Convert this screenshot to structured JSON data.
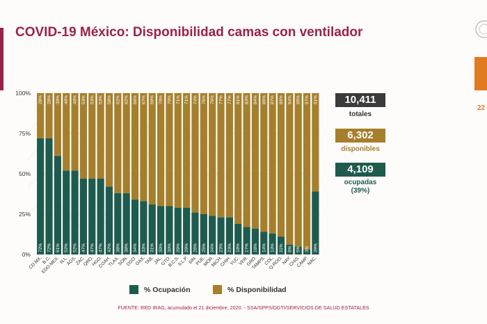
{
  "header": {
    "title": "COVID-19 México: Disponibilidad camas con ventilador"
  },
  "right_edge": {
    "number": "22"
  },
  "summary": {
    "total_value": "10,411",
    "total_label": "totales",
    "available_value": "6,302",
    "available_label": "disponibles",
    "occupied_value": "4,109",
    "occupied_label": "ocupadas",
    "occupied_pct": "(39%)"
  },
  "legend": {
    "occupancy": "% Ocupación",
    "availability": "% Disponibilidad"
  },
  "footer": {
    "source": "FUENTE: RED IRAG, acumulado el 21 diciembre, 2020. - SSA/SPPS/DGTI/SERVICIOS DE SALUD ESTATALES"
  },
  "colors": {
    "occupancy": "#1e5b4f",
    "availability": "#a57f2c",
    "title": "#9b2247",
    "total_box": "#3b3b3b"
  },
  "chart_data": {
    "type": "bar",
    "stacked": true,
    "yticks": [
      "0%",
      "25%",
      "50%",
      "75%",
      "100%"
    ],
    "ylim": [
      0,
      100
    ],
    "categories": [
      "CD.MX.",
      "B.C.",
      "EDO.MEX.",
      "N.L.",
      "AGS.",
      "ZAC.",
      "QRO.",
      "HGO.",
      "COAH.",
      "TLAX.",
      "SON.",
      "DGO.",
      "OAX.",
      "TAB.",
      "JAL.",
      "GTO.",
      "B.C.S.",
      "S.L.P.",
      "SIN.",
      "PUE.",
      "MOR.",
      "MICH.",
      "CHIH.",
      "YUC.",
      "VER.",
      "GRO.",
      "TAMPS.",
      "COL.",
      "Q.ROO.",
      "NAY.",
      "CHIS.",
      "CAMP.",
      "NAC."
    ],
    "series": [
      {
        "name": "% Ocupación",
        "values": [
          72,
          72,
          61,
          52,
          52,
          47,
          47,
          47,
          42,
          38,
          38,
          34,
          33,
          31,
          30,
          30,
          29,
          29,
          26,
          25,
          24,
          23,
          23,
          19,
          17,
          16,
          14,
          13,
          11,
          6,
          5,
          3,
          39
        ]
      },
      {
        "name": "% Disponibilidad",
        "values": [
          28,
          28,
          39,
          48,
          48,
          53,
          53,
          53,
          58,
          62,
          62,
          66,
          67,
          69,
          70,
          70,
          71,
          71,
          74,
          75,
          76,
          77,
          77,
          81,
          83,
          84,
          86,
          87,
          89,
          94,
          95,
          97,
          61
        ]
      }
    ]
  }
}
